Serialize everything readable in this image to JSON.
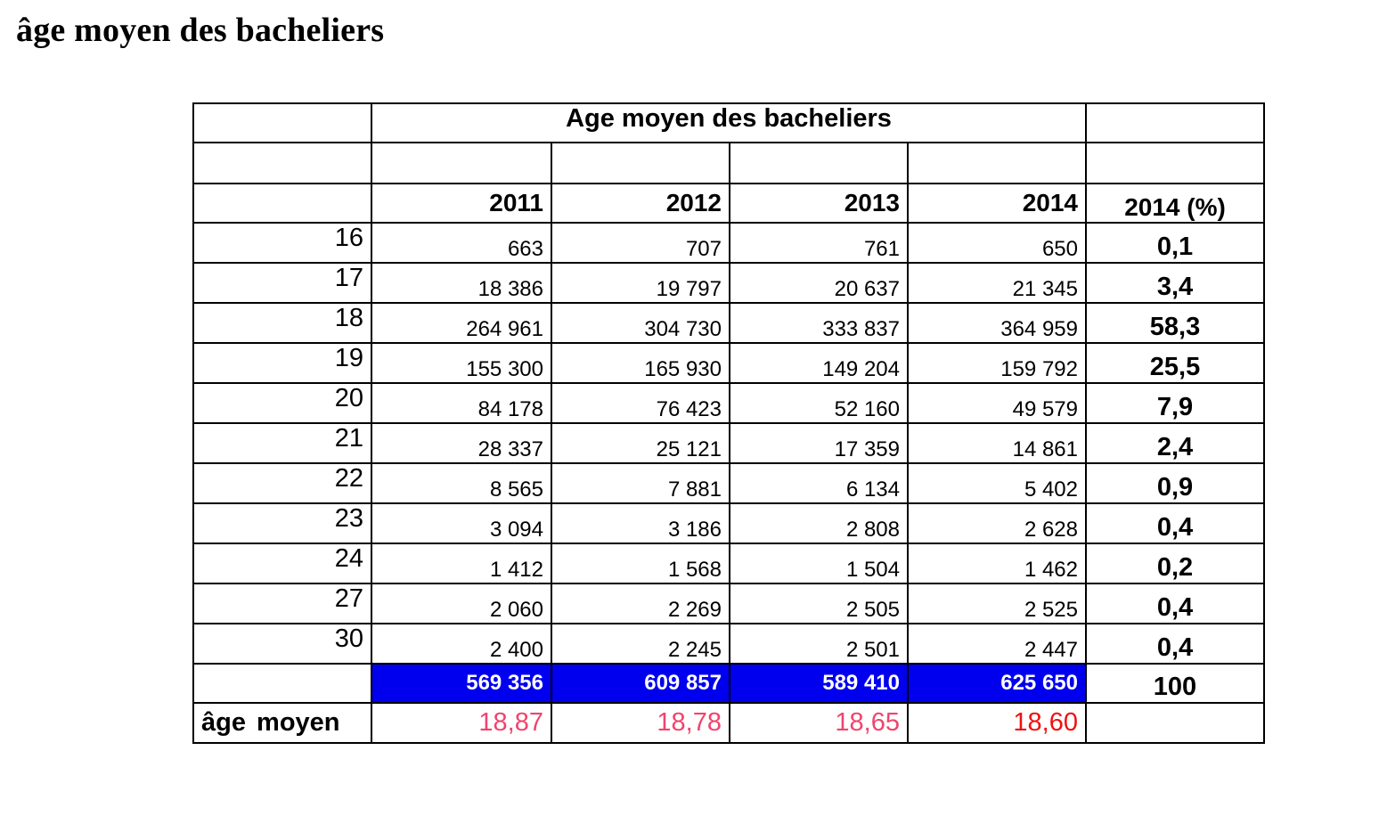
{
  "page": {
    "heading": "âge moyen des bacheliers"
  },
  "table": {
    "title": "Age moyen des bacheliers",
    "headers": {
      "years": [
        "2011",
        "2012",
        "2013",
        "2014"
      ],
      "percent": "2014 (%)"
    },
    "rows": [
      {
        "age": "16",
        "values": [
          "663",
          "707",
          "761",
          "650"
        ],
        "pct": "0,1"
      },
      {
        "age": "17",
        "values": [
          "18 386",
          "19 797",
          "20 637",
          "21 345"
        ],
        "pct": "3,4"
      },
      {
        "age": "18",
        "values": [
          "264 961",
          "304 730",
          "333 837",
          "364 959"
        ],
        "pct": "58,3"
      },
      {
        "age": "19",
        "values": [
          "155 300",
          "165 930",
          "149 204",
          "159 792"
        ],
        "pct": "25,5"
      },
      {
        "age": "20",
        "values": [
          "84 178",
          "76 423",
          "52 160",
          "49 579"
        ],
        "pct": "7,9"
      },
      {
        "age": "21",
        "values": [
          "28 337",
          "25 121",
          "17 359",
          "14 861"
        ],
        "pct": "2,4"
      },
      {
        "age": "22",
        "values": [
          "8 565",
          "7 881",
          "6 134",
          "5 402"
        ],
        "pct": "0,9"
      },
      {
        "age": "23",
        "values": [
          "3 094",
          "3 186",
          "2 808",
          "2 628"
        ],
        "pct": "0,4"
      },
      {
        "age": "24",
        "values": [
          "1 412",
          "1 568",
          "1 504",
          "1 462"
        ],
        "pct": "0,2"
      },
      {
        "age": "27",
        "values": [
          "2 060",
          "2 269",
          "2 505",
          "2 525"
        ],
        "pct": "0,4"
      },
      {
        "age": "30",
        "values": [
          "2 400",
          "2 245",
          "2 501",
          "2 447"
        ],
        "pct": "0,4"
      }
    ],
    "totals": {
      "values": [
        "569 356",
        "609 857",
        "589 410",
        "625 650"
      ],
      "pct": "100"
    },
    "mean": {
      "label": "âge moyen",
      "values": [
        "18,87",
        "18,78",
        "18,65",
        "18,60"
      ]
    }
  },
  "colors": {
    "total_background": "#0000ee",
    "total_text": "#ffffff",
    "mean_value": "#f0446e",
    "mean_value_last": "#ee1111"
  }
}
